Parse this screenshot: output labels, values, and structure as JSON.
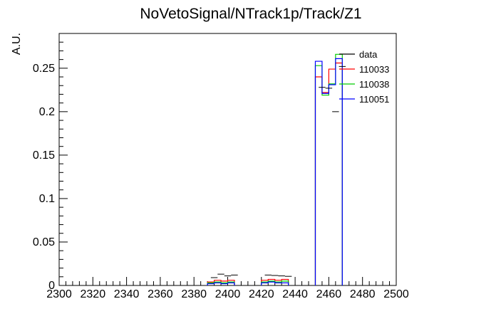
{
  "chart_data": {
    "type": "histogram",
    "title": "NoVetoSignal/NTrack1p/Track/Z1",
    "ylabel": "A.U.",
    "xlabel": "",
    "xlim": [
      2300,
      2500
    ],
    "ylim": [
      0,
      0.29
    ],
    "x_ticks": [
      2300,
      2320,
      2340,
      2360,
      2380,
      2400,
      2420,
      2440,
      2460,
      2480,
      2500
    ],
    "y_ticks": [
      0,
      0.05,
      0.1,
      0.15,
      0.2,
      0.25
    ],
    "y_tick_labels": [
      "0",
      "0.05",
      "0.1",
      "0.15",
      "0.2",
      "0.25"
    ],
    "grid": false,
    "legend_position": "top-right",
    "bin_edges": [
      2388,
      2392,
      2396,
      2400,
      2404,
      2420,
      2424,
      2428,
      2432,
      2436,
      2452,
      2456,
      2460,
      2464,
      2468
    ],
    "series": [
      {
        "name": "data",
        "color": "#000000",
        "style": "points",
        "points": [
          {
            "x": 2392,
            "y": 0.009,
            "xerr": 2
          },
          {
            "x": 2396,
            "y": 0.013,
            "xerr": 2
          },
          {
            "x": 2400,
            "y": 0.011,
            "xerr": 2
          },
          {
            "x": 2404,
            "y": 0.012,
            "xerr": 2
          },
          {
            "x": 2424,
            "y": 0.012,
            "xerr": 2
          },
          {
            "x": 2428,
            "y": 0.0115,
            "xerr": 2
          },
          {
            "x": 2432,
            "y": 0.011,
            "xerr": 2
          },
          {
            "x": 2436,
            "y": 0.0105,
            "xerr": 2
          },
          {
            "x": 2456,
            "y": 0.228,
            "xerr": 2
          },
          {
            "x": 2460,
            "y": 0.227,
            "xerr": 2
          },
          {
            "x": 2464,
            "y": 0.2,
            "xerr": 2
          },
          {
            "x": 2468,
            "y": 0.252,
            "xerr": 2
          }
        ]
      },
      {
        "name": "110033",
        "color": "#ff0000",
        "style": "step",
        "bins": [
          {
            "x0": 2388,
            "x1": 2392,
            "y": 0.004
          },
          {
            "x0": 2392,
            "x1": 2396,
            "y": 0.006
          },
          {
            "x0": 2396,
            "x1": 2400,
            "y": 0.005
          },
          {
            "x0": 2400,
            "x1": 2404,
            "y": 0.006
          },
          {
            "x0": 2420,
            "x1": 2424,
            "y": 0.006
          },
          {
            "x0": 2424,
            "x1": 2428,
            "y": 0.007
          },
          {
            "x0": 2428,
            "x1": 2432,
            "y": 0.006
          },
          {
            "x0": 2432,
            "x1": 2436,
            "y": 0.007
          },
          {
            "x0": 2452,
            "x1": 2456,
            "y": 0.24
          },
          {
            "x0": 2456,
            "x1": 2460,
            "y": 0.222
          },
          {
            "x0": 2460,
            "x1": 2464,
            "y": 0.249
          },
          {
            "x0": 2464,
            "x1": 2468,
            "y": 0.256
          }
        ]
      },
      {
        "name": "110038",
        "color": "#00cc00",
        "style": "step",
        "bins": [
          {
            "x0": 2388,
            "x1": 2392,
            "y": 0.003
          },
          {
            "x0": 2392,
            "x1": 2396,
            "y": 0.004
          },
          {
            "x0": 2396,
            "x1": 2400,
            "y": 0.003
          },
          {
            "x0": 2400,
            "x1": 2404,
            "y": 0.004
          },
          {
            "x0": 2420,
            "x1": 2424,
            "y": 0.004
          },
          {
            "x0": 2424,
            "x1": 2428,
            "y": 0.005
          },
          {
            "x0": 2428,
            "x1": 2432,
            "y": 0.004
          },
          {
            "x0": 2432,
            "x1": 2436,
            "y": 0.005
          },
          {
            "x0": 2452,
            "x1": 2456,
            "y": 0.253
          },
          {
            "x0": 2456,
            "x1": 2460,
            "y": 0.219
          },
          {
            "x0": 2460,
            "x1": 2464,
            "y": 0.232
          },
          {
            "x0": 2464,
            "x1": 2468,
            "y": 0.266
          }
        ]
      },
      {
        "name": "110051",
        "color": "#0000ff",
        "style": "step",
        "bins": [
          {
            "x0": 2388,
            "x1": 2392,
            "y": 0.002
          },
          {
            "x0": 2392,
            "x1": 2396,
            "y": 0.003
          },
          {
            "x0": 2396,
            "x1": 2400,
            "y": 0.002
          },
          {
            "x0": 2400,
            "x1": 2404,
            "y": 0.003
          },
          {
            "x0": 2420,
            "x1": 2424,
            "y": 0.003
          },
          {
            "x0": 2424,
            "x1": 2428,
            "y": 0.004
          },
          {
            "x0": 2428,
            "x1": 2432,
            "y": 0.003
          },
          {
            "x0": 2432,
            "x1": 2436,
            "y": 0.003
          },
          {
            "x0": 2452,
            "x1": 2456,
            "y": 0.258
          },
          {
            "x0": 2456,
            "x1": 2460,
            "y": 0.221
          },
          {
            "x0": 2460,
            "x1": 2464,
            "y": 0.231
          },
          {
            "x0": 2464,
            "x1": 2468,
            "y": 0.261
          }
        ]
      }
    ]
  }
}
